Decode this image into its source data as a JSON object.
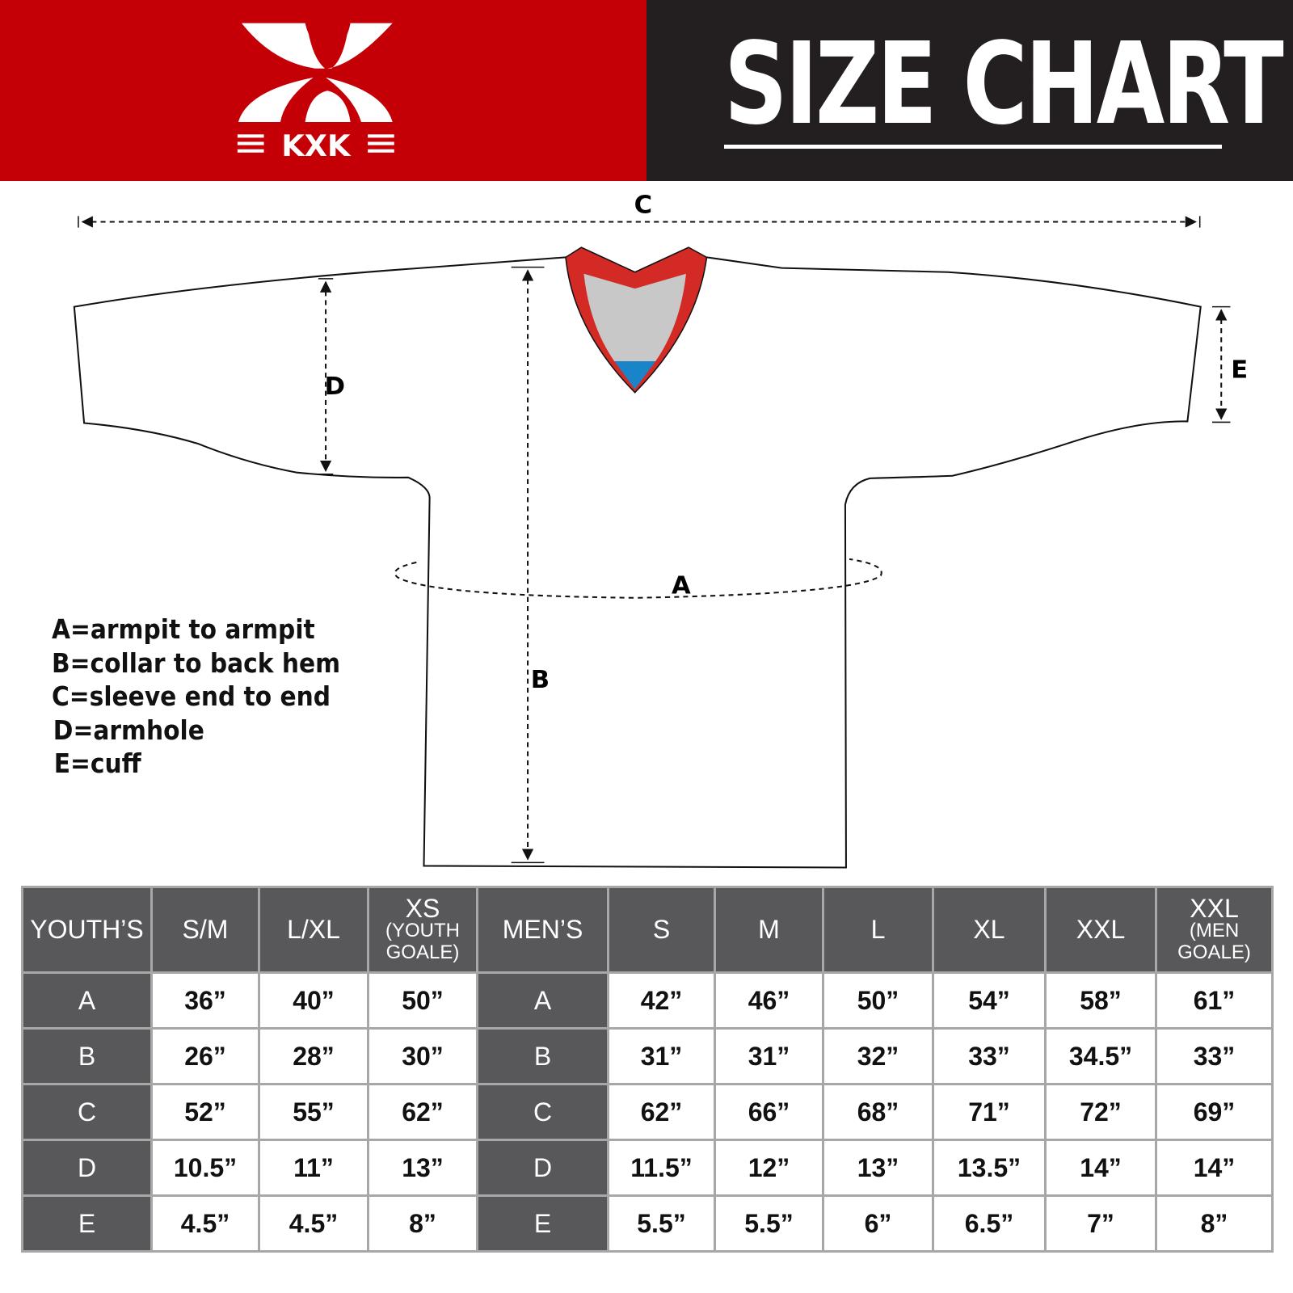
{
  "brand": {
    "logo_text": "KXK",
    "red": "#c40006",
    "dark": "#231f20"
  },
  "header": {
    "title": "SIZE CHART"
  },
  "diagram": {
    "labels": {
      "a": "A",
      "b": "B",
      "c": "C",
      "d": "D",
      "e": "E"
    },
    "collar_colors": {
      "trim": "#d42a25",
      "inner": "#c8c8c8",
      "tip": "#1a84c8"
    }
  },
  "legend": [
    "A=armpit to armpit",
    "B=collar to back hem",
    "C=sleeve end to end",
    "D=armhole",
    "E=cuff"
  ],
  "table": {
    "youth_header": "YOUTH’S",
    "men_header": "MEN’S",
    "youth_sizes": [
      {
        "main": "S/M",
        "sub": ""
      },
      {
        "main": "L/XL",
        "sub": ""
      },
      {
        "main": "XS",
        "sub": "(YOUTH GOALE)"
      }
    ],
    "men_sizes": [
      {
        "main": "S",
        "sub": ""
      },
      {
        "main": "M",
        "sub": ""
      },
      {
        "main": "L",
        "sub": ""
      },
      {
        "main": "XL",
        "sub": ""
      },
      {
        "main": "XXL",
        "sub": ""
      },
      {
        "main": "XXL",
        "sub": "(MEN GOALE)"
      }
    ],
    "rows": [
      {
        "label": "A",
        "youth": [
          "36”",
          "40”",
          "50”"
        ],
        "men": [
          "42”",
          "46”",
          "50”",
          "54”",
          "58”",
          "61”"
        ]
      },
      {
        "label": "B",
        "youth": [
          "26”",
          "28”",
          "30”"
        ],
        "men": [
          "31”",
          "31”",
          "32”",
          "33”",
          "34.5”",
          "33”"
        ]
      },
      {
        "label": "C",
        "youth": [
          "52”",
          "55”",
          "62”"
        ],
        "men": [
          "62”",
          "66”",
          "68”",
          "71”",
          "72”",
          "69”"
        ]
      },
      {
        "label": "D",
        "youth": [
          "10.5”",
          "11”",
          "13”"
        ],
        "men": [
          "11.5”",
          "12”",
          "13”",
          "13.5”",
          "14”",
          "14”"
        ]
      },
      {
        "label": "E",
        "youth": [
          "4.5”",
          "4.5”",
          "8”"
        ],
        "men": [
          "5.5”",
          "5.5”",
          "6”",
          "6.5”",
          "7”",
          "8”"
        ]
      }
    ]
  }
}
